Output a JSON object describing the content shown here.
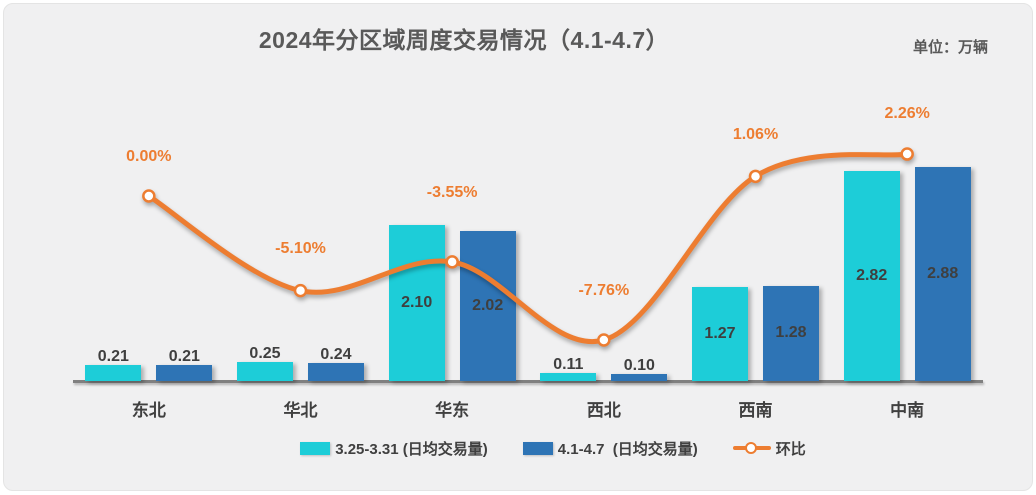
{
  "header": {
    "title": "2024年分区域周度交易情况（4.1-4.7）",
    "unit_label": "单位：万辆"
  },
  "colors": {
    "series_prev_week": "#1DCDD8",
    "series_this_week": "#2E74B5",
    "series_line": "#ED7D31",
    "card_background": "#F0F0F1",
    "axis_line": "#808080",
    "title_text": "#595959",
    "value_text": "#3F3F3F"
  },
  "chart_data": {
    "type": "bar",
    "combo": "grouped bars + smoothed line (secondary % axis)",
    "title": "2024年分区域周度交易情况（4.1-4.7）",
    "value_unit": "万辆",
    "categories": [
      "东北",
      "华北",
      "华东",
      "西北",
      "西南",
      "中南"
    ],
    "series": [
      {
        "name": "3.25-3.31 (日均交易量)",
        "type": "bar",
        "color": "#1DCDD8",
        "values": [
          0.21,
          0.25,
          2.1,
          0.11,
          1.27,
          2.82
        ],
        "value_labels": [
          "0.21",
          "0.25",
          "2.10",
          "0.11",
          "1.27",
          "2.82"
        ]
      },
      {
        "name": "4.1-4.7  (日均交易量)",
        "type": "bar",
        "color": "#2E74B5",
        "values": [
          0.21,
          0.24,
          2.02,
          0.1,
          1.28,
          2.88
        ],
        "value_labels": [
          "0.21",
          "0.24",
          "2.02",
          "0.10",
          "1.28",
          "2.88"
        ]
      },
      {
        "name": "环比",
        "type": "line",
        "color": "#ED7D31",
        "unit": "%",
        "values": [
          0.0,
          -5.1,
          -3.55,
          -7.76,
          1.06,
          2.26
        ],
        "value_labels": [
          "0.00%",
          "-5.10%",
          "-3.55%",
          "-7.76%",
          "1.06%",
          "2.26%"
        ]
      }
    ],
    "legend_position": "bottom",
    "grid": false,
    "x_axis_visible": true,
    "y_axis_visible": false
  }
}
